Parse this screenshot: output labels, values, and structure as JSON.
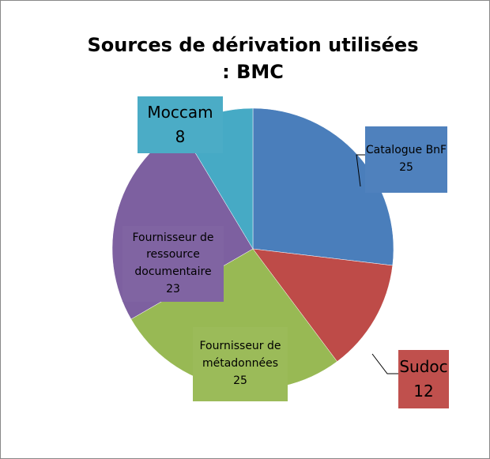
{
  "chart_data": {
    "type": "pie",
    "title": "Sources de dérivation utilisées : BMC",
    "categories": [
      "Catalogue BnF",
      "Sudoc",
      "Fournisseur de métadonnées",
      "Fournisseur de ressource documentaire",
      "Moccam"
    ],
    "values": [
      25,
      12,
      25,
      23,
      8
    ],
    "colors": [
      "#4a7ebb",
      "#be4b48",
      "#98b954",
      "#7d60a0",
      "#46aac5"
    ]
  }
}
